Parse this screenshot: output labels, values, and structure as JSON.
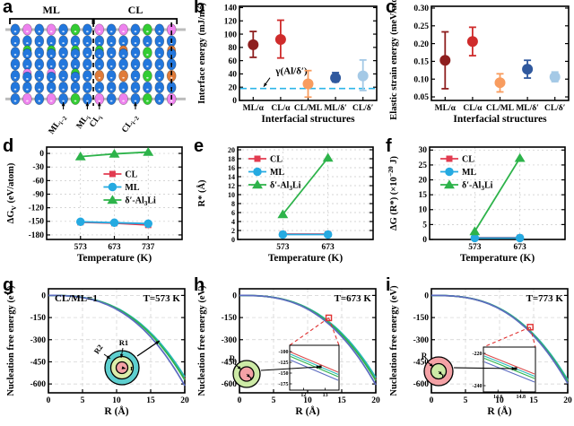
{
  "panels": {
    "a": {
      "letter": "a"
    },
    "b": {
      "letter": "b"
    },
    "c": {
      "letter": "c"
    },
    "d": {
      "letter": "d"
    },
    "e": {
      "letter": "e"
    },
    "f": {
      "letter": "f"
    },
    "g": {
      "letter": "g"
    },
    "h": {
      "letter": "h"
    },
    "i": {
      "letter": "i"
    }
  },
  "structure": {
    "top_groups": [
      {
        "label": "ML",
        "from": 0,
        "to": 6
      },
      {
        "label": "CL",
        "from": 7,
        "to": 13
      }
    ],
    "atom_colors": {
      "b": "#2277dd",
      "p": "#ee82ee",
      "g": "#33cc33",
      "o": "#e07b39"
    },
    "rows": [
      [
        "b",
        "p",
        "b",
        "p",
        "b",
        "g",
        "b",
        "p",
        "b",
        "p",
        "b",
        "g",
        "b",
        "p"
      ],
      [
        "b",
        "b",
        "b",
        "b",
        "b",
        "b",
        "b",
        "b",
        "b",
        "b",
        "b",
        "b",
        "b",
        "b"
      ],
      [
        "b",
        "bg",
        "b",
        "bg",
        "b",
        "bg",
        "b",
        "bg",
        "b",
        "bo",
        "b",
        "g",
        "b",
        "bo"
      ],
      [
        "b",
        "b",
        "b",
        "b",
        "b",
        "b",
        "b",
        "b",
        "b",
        "b",
        "b",
        "b",
        "b",
        "b"
      ],
      [
        "b",
        "bp",
        "b",
        "bp",
        "b",
        "bg",
        "b",
        "o",
        "b",
        "o",
        "b",
        "g",
        "b",
        "o"
      ],
      [
        "b",
        "b",
        "b",
        "b",
        "b",
        "b",
        "b",
        "b",
        "b",
        "b",
        "b",
        "b",
        "b",
        "b"
      ],
      [
        "b",
        "p",
        "b",
        "p",
        "b",
        "g",
        "b",
        "p",
        "b",
        "p",
        "b",
        "g",
        "b",
        "p"
      ]
    ],
    "dashed_cols": [
      6.5,
      13
    ],
    "pointers": [
      {
        "col": 4,
        "label": "ML_{i−2}"
      },
      {
        "col": 6,
        "label": "ML_{i}"
      },
      {
        "col": 7,
        "label": "CL_{i}"
      },
      {
        "col": 10,
        "label": "CL_{i−2}"
      }
    ]
  },
  "chart_data": [
    {
      "id": "b",
      "type": "errbar",
      "categories": [
        "ML/α",
        "CL/α",
        "CL/ML",
        "ML/δ′",
        "CL/δ′"
      ],
      "values": [
        84,
        92,
        25,
        34,
        37
      ],
      "err_low": [
        65,
        64,
        5,
        28,
        15
      ],
      "err_high": [
        104,
        121,
        45,
        42,
        61
      ],
      "colors": [
        "#8e1f1f",
        "#cf2c2c",
        "#f89c5f",
        "#30599e",
        "#a4c9e6"
      ],
      "ylabel": "Interface energy (mJ/m^{2})",
      "xlabel": "Interfacial structures",
      "ylim": [
        0,
        142
      ],
      "yticks": [
        0,
        20,
        40,
        60,
        80,
        100,
        120,
        140
      ],
      "ytick_labels": [
        "0",
        "20",
        "40",
        "60",
        "80",
        "100",
        "120",
        "140"
      ],
      "refline": {
        "y": 18,
        "color": "#2cb5e8",
        "label": "γ(Al/δ′)"
      }
    },
    {
      "id": "c",
      "type": "errbar",
      "categories": [
        "ML/α",
        "CL/α",
        "CL/ML",
        "ML/δ′",
        "CL/δ′"
      ],
      "values": [
        0.153,
        0.206,
        0.09,
        0.128,
        0.106
      ],
      "err_low": [
        0.073,
        0.166,
        0.064,
        0.103,
        0.093
      ],
      "err_high": [
        0.233,
        0.246,
        0.115,
        0.153,
        0.12
      ],
      "colors": [
        "#8e1f1f",
        "#cf2c2c",
        "#f89c5f",
        "#30599e",
        "#a4c9e6"
      ],
      "ylabel": "Elastic strain energy (meV/atom)",
      "xlabel": "Interfacial structures",
      "ylim": [
        0.04,
        0.305
      ],
      "yticks": [
        0.05,
        0.1,
        0.15,
        0.2,
        0.25,
        0.3
      ],
      "ytick_labels": [
        "0.05",
        "0.10",
        "0.15",
        "0.20",
        "0.25",
        "0.30"
      ]
    },
    {
      "id": "d",
      "type": "line",
      "categories": [
        "573",
        "673",
        "737"
      ],
      "series": [
        {
          "name": "CL",
          "marker": "square",
          "color": "#e23b50",
          "values": [
            -152,
            -154,
            -158
          ]
        },
        {
          "name": "ML",
          "marker": "circle",
          "color": "#25aae1",
          "values": [
            -151,
            -153,
            -155
          ]
        },
        {
          "name": "δ′-Al_{3}Li",
          "marker": "triangle",
          "color": "#2db34a",
          "values": [
            -7,
            -1,
            3
          ]
        }
      ],
      "ylabel": "ΔG_{V} (eV/atom)",
      "xlabel": "Temperature (K)",
      "ylim": [
        -190,
        14
      ],
      "yticks": [
        0,
        -30,
        -60,
        -90,
        -120,
        -150,
        -180
      ],
      "ytick_labels": [
        "0",
        "-30",
        "-60",
        "-90",
        "-120",
        "-150",
        "-180"
      ],
      "legend_pos": "mid-right"
    },
    {
      "id": "e",
      "type": "line",
      "categories": [
        "573",
        "673"
      ],
      "series": [
        {
          "name": "CL",
          "marker": "square",
          "color": "#e23b50",
          "values": [
            1.2,
            1.2
          ]
        },
        {
          "name": "ML",
          "marker": "circle",
          "color": "#25aae1",
          "values": [
            1.1,
            1.1
          ]
        },
        {
          "name": "δ′-Al_{3}Li",
          "marker": "triangle",
          "color": "#2db34a",
          "values": [
            5.6,
            18.2
          ]
        }
      ],
      "ylabel": "R* (Å)",
      "xlabel": "Temperature (K)",
      "ylim": [
        0,
        20.6
      ],
      "yticks": [
        0,
        2,
        4,
        6,
        8,
        10,
        12,
        14,
        16,
        18,
        20
      ],
      "ytick_labels": [
        "0",
        "2",
        "4",
        "6",
        "8",
        "10",
        "12",
        "14",
        "16",
        "18",
        "20"
      ],
      "legend_pos": "top-left"
    },
    {
      "id": "f",
      "type": "line",
      "categories": [
        "573",
        "673"
      ],
      "series": [
        {
          "name": "CL",
          "marker": "square",
          "color": "#e23b50",
          "values": [
            0.6,
            0.6
          ]
        },
        {
          "name": "ML",
          "marker": "circle",
          "color": "#25aae1",
          "values": [
            0.5,
            0.5
          ]
        },
        {
          "name": "δ′-Al_{3}Li",
          "marker": "triangle",
          "color": "#2db34a",
          "values": [
            2.7,
            27.3
          ]
        }
      ],
      "ylabel": "ΔG (R*) (×10^{−20} J)",
      "xlabel": "Temperature (K)",
      "ylim": [
        0,
        31
      ],
      "yticks": [
        0,
        5,
        10,
        15,
        20,
        25,
        30
      ],
      "ytick_labels": [
        "0",
        "5",
        "10",
        "15",
        "20",
        "25",
        "30"
      ],
      "legend_pos": "top-left"
    },
    {
      "id": "g",
      "type": "curve",
      "anno_left": "CL/ML=1",
      "anno_right": "T=573 K",
      "xlabel": "R (Å)",
      "ylabel": "Nucleation free energy (eV)",
      "xlim": [
        0,
        20
      ],
      "xticks": [
        0,
        5,
        10,
        15,
        20
      ],
      "xtick_labels": [
        "0",
        "5",
        "10",
        "15",
        "20"
      ],
      "ylim": [
        -660,
        45
      ],
      "yticks": [
        0,
        -150,
        -300,
        -450,
        -600
      ],
      "ytick_labels": [
        "0",
        "-150",
        "-300",
        "-450",
        "-600"
      ],
      "curve_colors": [
        "#d94a4a",
        "#27b9b9",
        "#2eb44a",
        "#5b6bc0"
      ],
      "curve_end": [
        -565,
        -552,
        -573,
        -612
      ],
      "exponent": 2.7,
      "inset_circle": {
        "variant": "g",
        "labels": [
          "R2",
          "R1",
          "r"
        ],
        "ring_colors": [
          "#5ecfcf",
          "#dcedaa",
          "#f4a2a6"
        ]
      }
    },
    {
      "id": "h",
      "type": "curve",
      "anno_left": "",
      "anno_right": "T=673 K",
      "xlabel": "R (Å)",
      "ylabel": "Nucleation free energy (eV)",
      "xlim": [
        0,
        20
      ],
      "xticks": [
        0,
        5,
        10,
        15,
        20
      ],
      "xtick_labels": [
        "0",
        "5",
        "10",
        "15",
        "20"
      ],
      "ylim": [
        -660,
        45
      ],
      "yticks": [
        0,
        -150,
        -300,
        -450,
        -600
      ],
      "ytick_labels": [
        "0",
        "-150",
        "-300",
        "-450",
        "-600"
      ],
      "curve_colors": [
        "#d94a4a",
        "#27b9b9",
        "#2eb44a",
        "#5b6bc0"
      ],
      "curve_end": [
        -568,
        -556,
        -577,
        -606
      ],
      "exponent": 2.7,
      "marker": {
        "x": 13.1,
        "y": -152
      },
      "inset_plot": {
        "xticks": [
          "12",
          "13"
        ],
        "yticks": [
          "-100",
          "-125",
          "-150",
          "-175"
        ]
      },
      "inset_circle": {
        "variant": "h",
        "labels": [
          "R",
          "r"
        ],
        "ring_colors": [
          "#cdeaa6",
          "#f4a2a6"
        ]
      }
    },
    {
      "id": "i",
      "type": "curve",
      "anno_left": "",
      "anno_right": "T=773 K",
      "xlabel": "R (Å)",
      "ylabel": "Nucleation free energy (eV)",
      "xlim": [
        0,
        20
      ],
      "xticks": [
        0,
        5,
        10,
        15,
        20
      ],
      "xtick_labels": [
        "0",
        "5",
        "10",
        "15",
        "20"
      ],
      "ylim": [
        -660,
        45
      ],
      "yticks": [
        0,
        -150,
        -300,
        -450,
        -600
      ],
      "ytick_labels": [
        "0",
        "-150",
        "-300",
        "-450",
        "-600"
      ],
      "curve_colors": [
        "#d94a4a",
        "#27b9b9",
        "#2eb44a",
        "#5b6bc0"
      ],
      "curve_end": [
        -578,
        -572,
        -584,
        -596
      ],
      "exponent": 2.7,
      "marker": {
        "x": 14.5,
        "y": -215
      },
      "inset_plot": {
        "xticks": [
          "14.6",
          "14.8"
        ],
        "yticks": [
          "-220",
          "-240"
        ]
      },
      "inset_circle": {
        "variant": "i",
        "labels": [
          "R",
          "r"
        ],
        "ring_colors": [
          "#f4a2a6",
          "#cdeaa6"
        ]
      }
    }
  ]
}
